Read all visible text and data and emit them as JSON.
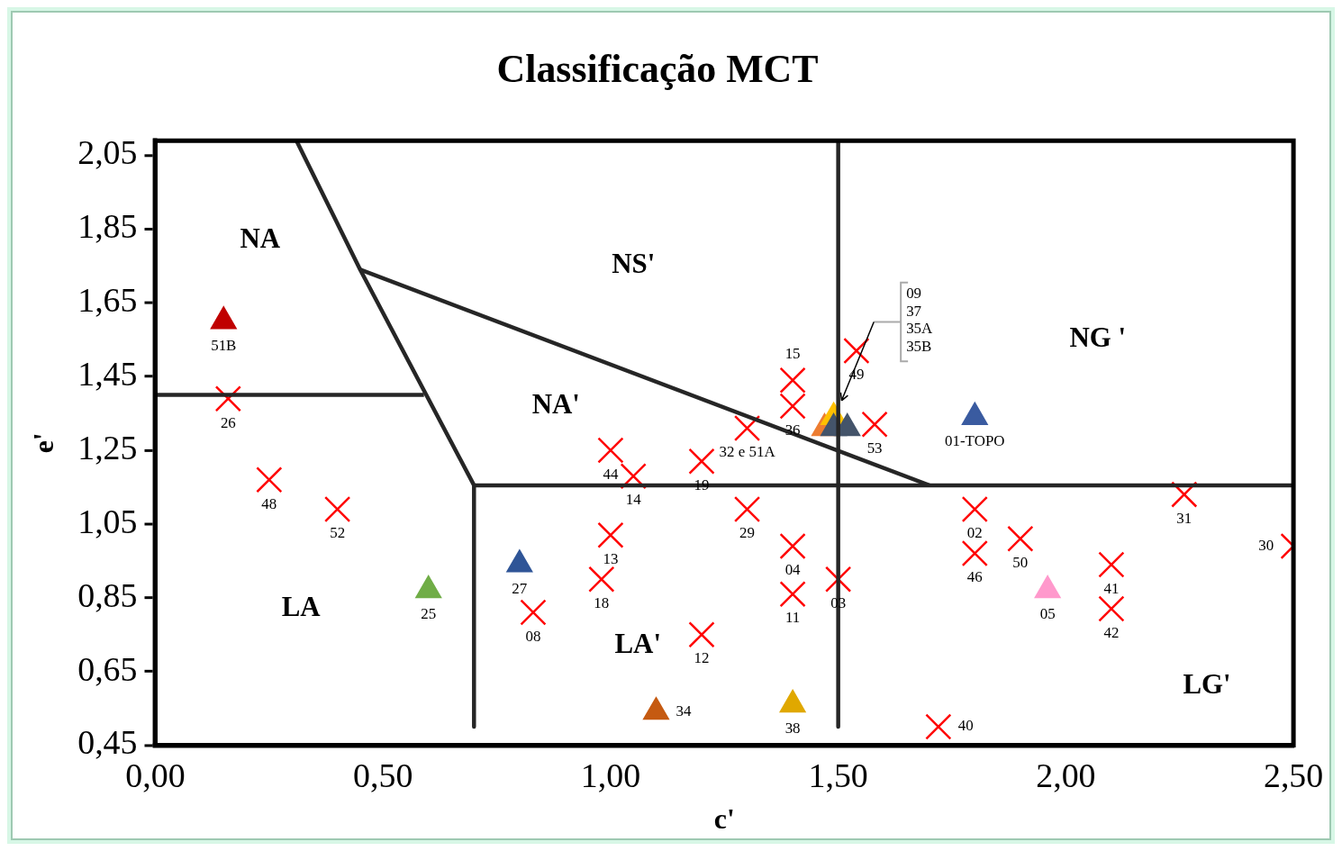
{
  "chart_data": {
    "type": "scatter",
    "title": "Classificação MCT",
    "xlabel": "c'",
    "ylabel": "e'",
    "xlim": [
      0,
      2.5
    ],
    "ylim": [
      0.45,
      2.09
    ],
    "xticks": [
      {
        "value": 0,
        "label": "0,00"
      },
      {
        "value": 0.5,
        "label": "0,50"
      },
      {
        "value": 1,
        "label": "1,00"
      },
      {
        "value": 1.5,
        "label": "1,50"
      },
      {
        "value": 2,
        "label": "2,00"
      },
      {
        "value": 2.5,
        "label": "2,50"
      }
    ],
    "yticks": [
      {
        "value": 0.45,
        "label": "0,45"
      },
      {
        "value": 0.65,
        "label": "0,65"
      },
      {
        "value": 0.85,
        "label": "0,85"
      },
      {
        "value": 1.05,
        "label": "1,05"
      },
      {
        "value": 1.25,
        "label": "1,25"
      },
      {
        "value": 1.45,
        "label": "1,45"
      },
      {
        "value": 1.65,
        "label": "1,65"
      },
      {
        "value": 1.85,
        "label": "1,85"
      },
      {
        "value": 2.05,
        "label": "2,05"
      }
    ],
    "grid": false,
    "legend": false,
    "series": [
      {
        "type": "line",
        "color": "#262626",
        "marker": "none",
        "x": [
          0.31,
          0.45,
          0.7,
          0.7
        ],
        "values": [
          2.09,
          1.74,
          1.155,
          0.5
        ]
      },
      {
        "type": "line",
        "color": "#262626",
        "marker": "none",
        "x": [
          0.45,
          1.7
        ],
        "values": [
          1.74,
          1.155
        ]
      },
      {
        "type": "line",
        "color": "#262626",
        "marker": "none",
        "x": [
          0.7,
          2.5
        ],
        "values": [
          1.155,
          1.155
        ]
      },
      {
        "type": "line",
        "color": "#262626",
        "marker": "none",
        "x": [
          0,
          0.59
        ],
        "values": [
          1.4,
          1.4
        ]
      },
      {
        "type": "line",
        "color": "#262626",
        "marker": "none",
        "x": [
          1.5,
          1.5
        ],
        "values": [
          2.09,
          0.5
        ]
      },
      {
        "marker": "cross",
        "color": "#ff0000",
        "x": [
          0.16,
          0.25,
          0.4,
          1.0,
          1.05,
          1.2,
          1.4,
          1.4,
          1.3,
          1.54,
          1.58,
          1.0,
          0.98,
          0.83,
          1.3,
          1.4,
          1.4,
          1.5,
          1.2,
          1.8,
          1.8,
          1.9,
          2.1,
          2.1,
          2.26,
          2.5,
          1.72
        ],
        "values": [
          1.39,
          1.17,
          1.09,
          1.25,
          1.18,
          1.22,
          1.44,
          1.37,
          1.31,
          1.52,
          1.32,
          1.02,
          0.9,
          0.81,
          1.09,
          0.99,
          0.86,
          0.9,
          0.75,
          1.09,
          0.97,
          1.01,
          0.94,
          0.82,
          1.13,
          0.99,
          0.5
        ]
      },
      {
        "marker": "triangle",
        "colors": [
          "#c00000",
          "#2f5597",
          "#70ad47",
          "#c55a11",
          "#e0a800",
          "#ff99cc",
          "#3a5ba0",
          "#ed7d31",
          "#ffc000",
          "#44546a",
          "#44546a"
        ],
        "x": [
          0.15,
          0.8,
          0.6,
          1.1,
          1.4,
          1.96,
          1.8,
          1.47,
          1.49,
          1.49,
          1.52
        ],
        "values": [
          1.6,
          0.94,
          0.87,
          0.54,
          0.56,
          0.87,
          1.34,
          1.31,
          1.34,
          1.31,
          1.31
        ]
      }
    ],
    "annotations": [
      "NA",
      "NS'",
      "NA'",
      "NG '",
      "LA",
      "LA'",
      "LG'",
      {
        "text": "26",
        "x": 0.16,
        "y": 1.39
      },
      {
        "text": "48",
        "x": 0.25,
        "y": 1.17
      },
      {
        "text": "52",
        "x": 0.4,
        "y": 1.09
      },
      {
        "text": "44",
        "x": 1.0,
        "y": 1.25
      },
      {
        "text": "14",
        "x": 1.05,
        "y": 1.18
      },
      {
        "text": "19",
        "x": 1.2,
        "y": 1.22
      },
      {
        "text": "15",
        "x": 1.4,
        "y": 1.44
      },
      {
        "text": "36",
        "x": 1.4,
        "y": 1.37
      },
      {
        "text": "32 e 51A",
        "x": 1.3,
        "y": 1.31
      },
      {
        "text": "49",
        "x": 1.54,
        "y": 1.52
      },
      {
        "text": "53",
        "x": 1.58,
        "y": 1.32
      },
      {
        "text": "13",
        "x": 1.0,
        "y": 1.02
      },
      {
        "text": "18",
        "x": 0.98,
        "y": 0.9
      },
      {
        "text": "08",
        "x": 0.83,
        "y": 0.81
      },
      {
        "text": "29",
        "x": 1.3,
        "y": 1.09
      },
      {
        "text": "04",
        "x": 1.4,
        "y": 0.99
      },
      {
        "text": "11",
        "x": 1.4,
        "y": 0.86
      },
      {
        "text": "03",
        "x": 1.5,
        "y": 0.9
      },
      {
        "text": "12",
        "x": 1.2,
        "y": 0.75
      },
      {
        "text": "02",
        "x": 1.8,
        "y": 1.09
      },
      {
        "text": "46",
        "x": 1.8,
        "y": 0.97
      },
      {
        "text": "50",
        "x": 1.9,
        "y": 1.01
      },
      {
        "text": "41",
        "x": 2.1,
        "y": 0.94
      },
      {
        "text": "42",
        "x": 2.1,
        "y": 0.82
      },
      {
        "text": "31",
        "x": 2.26,
        "y": 1.13
      },
      {
        "text": "30",
        "x": 2.5,
        "y": 0.99
      },
      {
        "text": "40",
        "x": 1.72,
        "y": 0.5
      },
      {
        "text": "51B",
        "x": 0.15,
        "y": 1.6
      },
      {
        "text": "27",
        "x": 0.8,
        "y": 0.94
      },
      {
        "text": "25",
        "x": 0.6,
        "y": 0.87
      },
      {
        "text": "34",
        "x": 1.1,
        "y": 0.54
      },
      {
        "text": "38",
        "x": 1.4,
        "y": 0.56
      },
      {
        "text": "05",
        "x": 1.96,
        "y": 0.87
      },
      {
        "text": "01-TOPO",
        "x": 1.8,
        "y": 1.34
      },
      "09",
      "37",
      "35A",
      "35B"
    ]
  }
}
